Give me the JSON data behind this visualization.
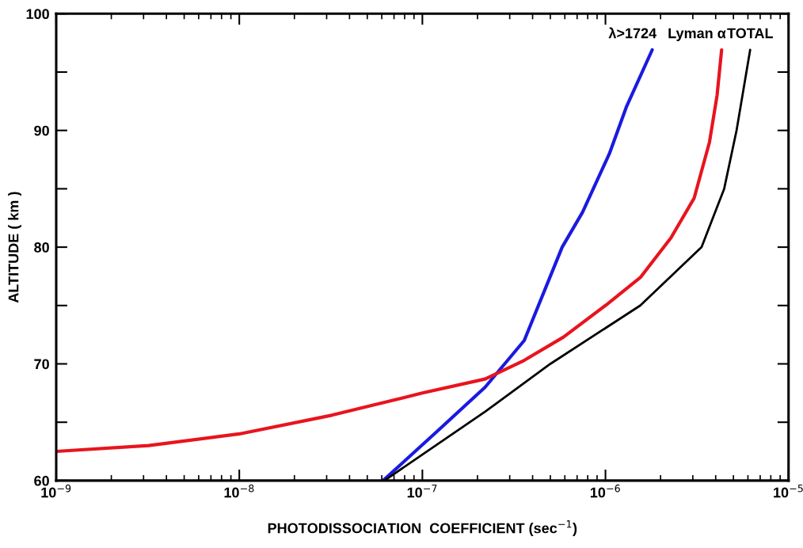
{
  "chart_data": {
    "type": "line",
    "xlabel": "PHOTODISSOCIATION  COEFFICIENT (sec$^{−1}$)",
    "ylabel": "ALTITUDE ( km )",
    "annotations": [
      {
        "text": "λ>1724",
        "x": 1.8e-06,
        "y": 96.9
      },
      {
        "text": "Lyman α",
        "x": 4.31e-06,
        "y": 96.9
      },
      {
        "text": "TOTAL",
        "x": 6.17e-06,
        "y": 96.9
      }
    ],
    "log": "x",
    "grid": false,
    "legend": false,
    "xlim": [
      1e-09,
      1e-05
    ],
    "xticks": [
      {
        "value": 1e-09,
        "label": "10$^{−9}$"
      },
      {
        "value": 1e-08,
        "label": "10$^{−8}$"
      },
      {
        "value": 1e-07,
        "label": "10$^{−7}$"
      },
      {
        "value": 1e-06,
        "label": "10$^{−6}$"
      },
      {
        "value": 1e-05,
        "label": "10$^{−5}$"
      }
    ],
    "ylim": [
      60,
      100
    ],
    "yticks": [
      60,
      {
        "value": 65,
        "label": null
      },
      70,
      {
        "value": 75,
        "label": null
      },
      80,
      {
        "value": 85,
        "label": null
      },
      90,
      {
        "value": 95,
        "label": null
      },
      100
    ],
    "series": [
      {
        "color": "#1a1ae0",
        "x": [
          6.1e-08,
          1.2e-07,
          2.2e-07,
          3.6e-07,
          5.8e-07,
          7.5e-07,
          1.05e-06,
          1.3e-06,
          1.8e-06
        ],
        "values": [
          60,
          64.2,
          68,
          72,
          80,
          83,
          88,
          92,
          96.9
        ]
      },
      {
        "color": "#e8141e",
        "x": [
          1e-09,
          3.2e-09,
          1e-08,
          3.2e-08,
          1e-07,
          2.2e-07,
          3.6e-07,
          5.9e-07,
          1e-06,
          1.55e-06,
          2.28e-06,
          3.05e-06,
          3.7e-06,
          4.07e-06,
          4.31e-06
        ],
        "values": [
          62.5,
          63.0,
          64.0,
          65.6,
          67.5,
          68.7,
          70.3,
          72.3,
          75,
          77.4,
          80.8,
          84.2,
          89,
          93,
          96.9
        ]
      },
      {
        "color": "#000000",
        "x": [
          6.2e-08,
          2.2e-07,
          5e-07,
          1.55e-06,
          3.35e-06,
          4.45e-06,
          5.2e-06,
          6.17e-06
        ],
        "values": [
          60,
          65.9,
          70,
          75,
          80,
          85,
          90,
          96.9
        ]
      }
    ]
  }
}
